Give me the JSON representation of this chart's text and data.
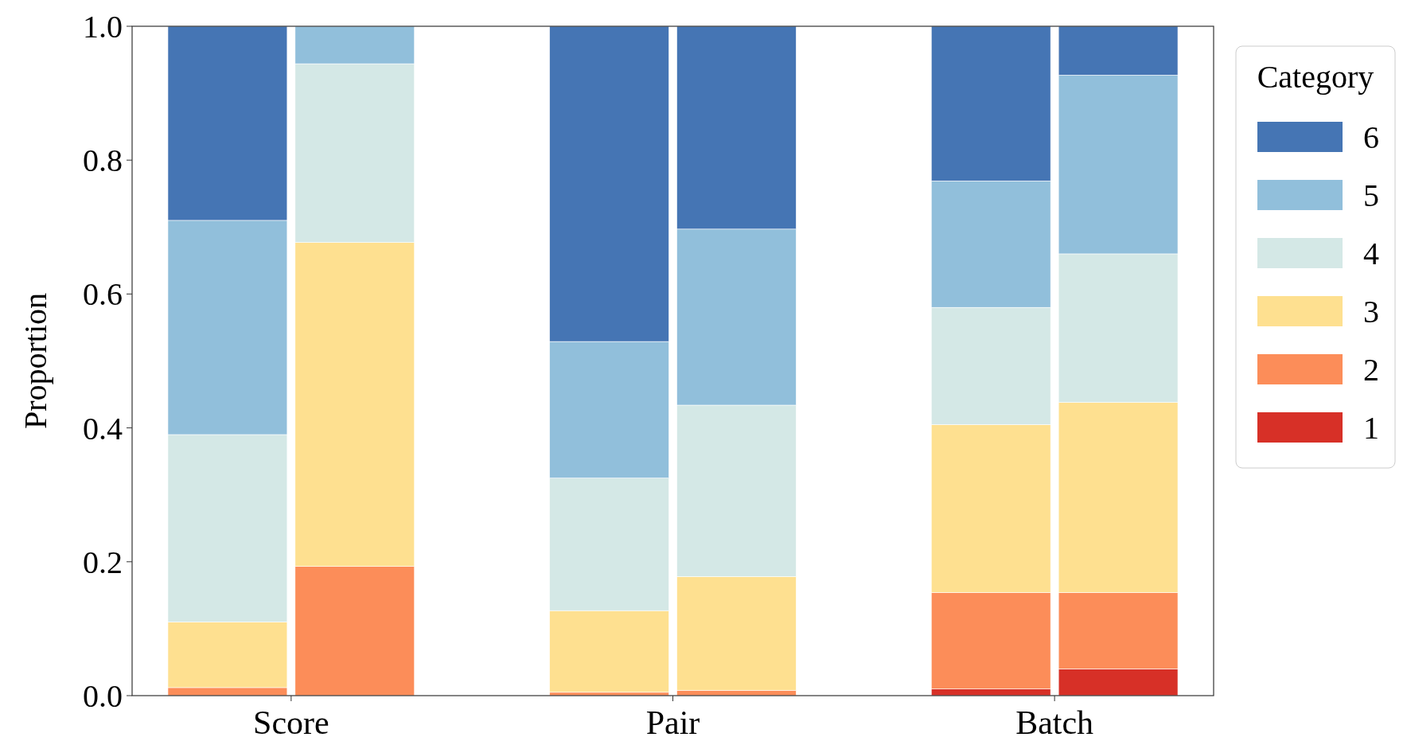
{
  "chart_data": {
    "type": "bar",
    "stacked": true,
    "ylabel": "Proportion",
    "legend_title": "Category",
    "legend": "right",
    "categories": [
      null,
      null,
      "Score",
      null,
      null,
      null,
      null,
      null,
      "Pair",
      null,
      null,
      null,
      null,
      null,
      "Batch",
      null,
      null
    ],
    "ylim": [
      0,
      1
    ],
    "yticks": [
      {
        "value": 0,
        "label": "0.0"
      },
      {
        "value": 0.2,
        "label": "0.2"
      },
      {
        "value": 0.4,
        "label": "0.4"
      },
      {
        "value": 0.6,
        "label": "0.6"
      },
      {
        "value": 0.8,
        "label": "0.8"
      },
      {
        "value": 1,
        "label": "1.0"
      }
    ],
    "series": [
      {
        "name": "1",
        "color": "#d73027",
        "values": [
          null,
          0,
          null,
          0,
          null,
          null,
          null,
          0,
          null,
          0,
          null,
          null,
          null,
          0.01,
          null,
          0.04,
          null
        ]
      },
      {
        "name": "2",
        "color": "#fc8d59",
        "values": [
          null,
          0.012,
          null,
          0.193,
          null,
          null,
          null,
          0.005,
          null,
          0.008,
          null,
          null,
          null,
          0.144,
          null,
          0.114,
          null
        ]
      },
      {
        "name": "3",
        "color": "#fee090",
        "values": [
          null,
          0.098,
          null,
          0.484,
          null,
          null,
          null,
          0.122,
          null,
          0.17,
          null,
          null,
          null,
          0.251,
          null,
          0.284,
          null
        ]
      },
      {
        "name": "4",
        "color": "#d4e8e6",
        "values": [
          null,
          0.28,
          null,
          0.267,
          null,
          null,
          null,
          0.198,
          null,
          0.256,
          null,
          null,
          null,
          0.175,
          null,
          0.222,
          null
        ]
      },
      {
        "name": "5",
        "color": "#91bfdb",
        "values": [
          null,
          0.32,
          null,
          0.056,
          null,
          null,
          null,
          0.204,
          null,
          0.263,
          null,
          null,
          null,
          0.189,
          null,
          0.267,
          null
        ]
      },
      {
        "name": "6",
        "color": "#4575b4",
        "values": [
          null,
          0.29,
          null,
          0,
          null,
          null,
          null,
          0.471,
          null,
          0.303,
          null,
          null,
          null,
          0.231,
          null,
          0.073,
          null
        ]
      }
    ]
  }
}
